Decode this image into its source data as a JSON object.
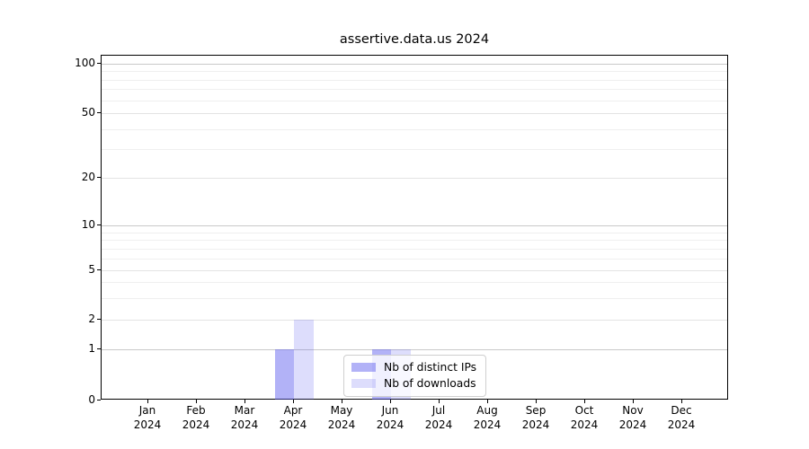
{
  "title": "assertive.data.us 2024",
  "chart_data": {
    "type": "bar",
    "title": "assertive.data.us 2024",
    "x_year": "2024",
    "categories": [
      "Jan",
      "Feb",
      "Mar",
      "Apr",
      "May",
      "Jun",
      "Jul",
      "Aug",
      "Sep",
      "Oct",
      "Nov",
      "Dec"
    ],
    "series": [
      {
        "name": "Nb of distinct IPs",
        "color_hex": "#5555ee",
        "fill_opacity": 0.45,
        "values": [
          0,
          0,
          0,
          1,
          0,
          1,
          0,
          0,
          0,
          0,
          0,
          0
        ]
      },
      {
        "name": "Nb of downloads",
        "color_hex": "#5555ee",
        "fill_opacity": 0.2,
        "values": [
          0,
          0,
          0,
          2,
          0,
          1,
          0,
          0,
          0,
          0,
          0,
          0
        ]
      }
    ],
    "y_ticks": [
      0,
      1,
      2,
      5,
      10,
      20,
      50,
      100
    ],
    "y_scale": "symlog",
    "ylim": [
      0,
      110
    ],
    "grid": true,
    "legend_position": "inside plot, lower middle"
  },
  "legend": {
    "items": [
      {
        "label": "Nb of distinct IPs"
      },
      {
        "label": "Nb of downloads"
      }
    ]
  }
}
